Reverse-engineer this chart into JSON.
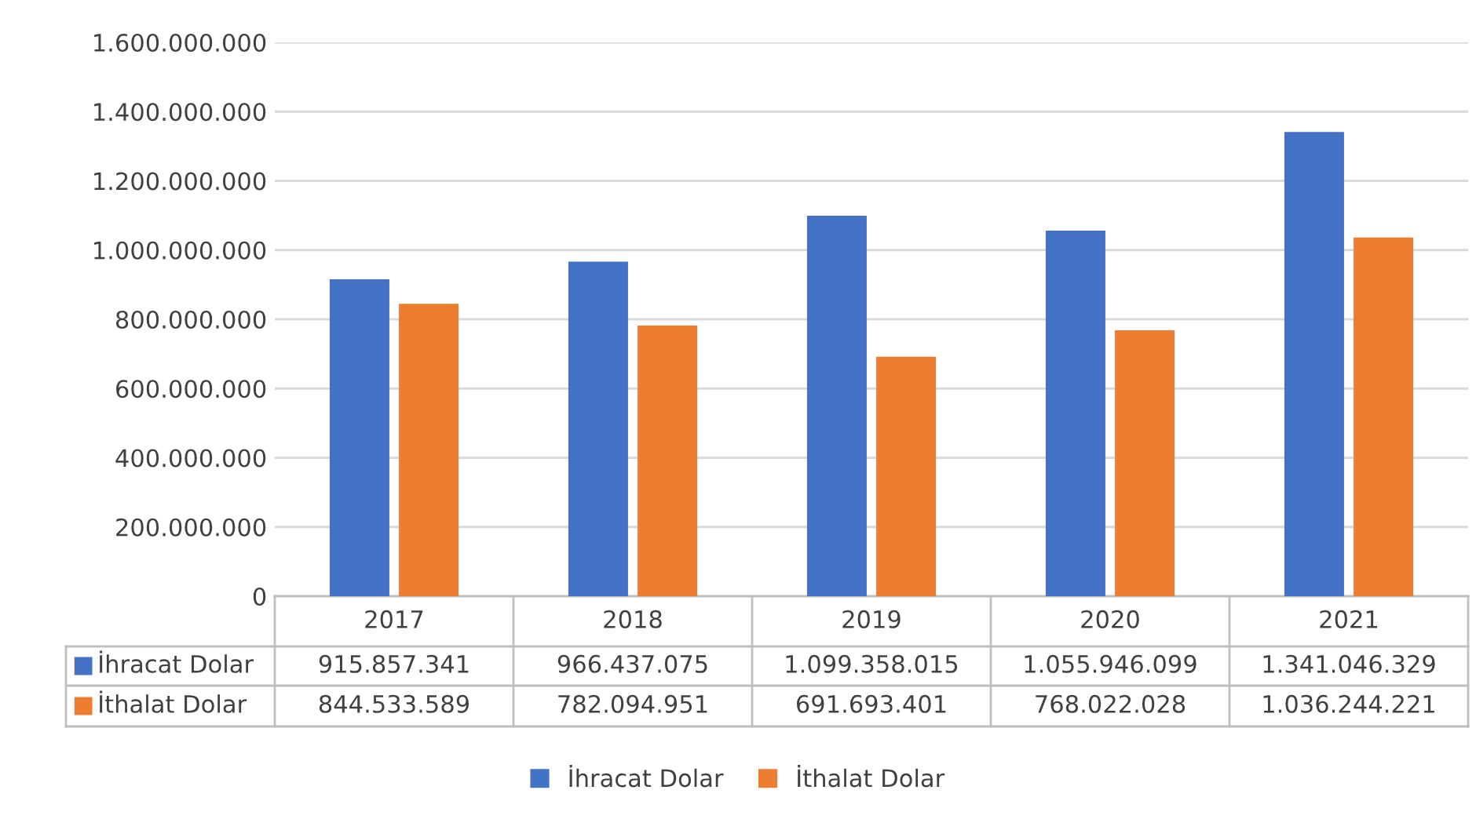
{
  "chart_data": {
    "type": "bar",
    "categories": [
      "2017",
      "2018",
      "2019",
      "2020",
      "2021"
    ],
    "series": [
      {
        "name": "İhracat Dolar",
        "color": "#4472c4",
        "values": [
          915857341,
          966437075,
          1099358015,
          1055946099,
          1341046329
        ],
        "value_labels": [
          "915.857.341",
          "966.437.075",
          "1.099.358.015",
          "1.055.946.099",
          "1.341.046.329"
        ]
      },
      {
        "name": "İthalat Dolar",
        "color": "#ed7d31",
        "values": [
          844533589,
          782094951,
          691693401,
          768022028,
          1036244221
        ],
        "value_labels": [
          "844.533.589",
          "782.094.951",
          "691.693.401",
          "768.022.028",
          "1.036.244.221"
        ]
      }
    ],
    "ylim": [
      0,
      1600000000
    ],
    "yticks": [
      0,
      {
        "value": 200000000,
        "label": "200.000.000"
      },
      {
        "value": 400000000,
        "label": "400.000.000"
      },
      {
        "value": 600000000,
        "label": "600.000.000"
      },
      {
        "value": 800000000,
        "label": "800.000.000"
      },
      {
        "value": 1000000000,
        "label": "1.000.000.000"
      },
      {
        "value": 1200000000,
        "label": "1.200.000.000"
      },
      {
        "value": 1400000000,
        "label": "1.400.000.000"
      },
      {
        "value": 1600000000,
        "label": "1.600.000.000"
      }
    ],
    "grid": "y",
    "legend": "bottom"
  }
}
